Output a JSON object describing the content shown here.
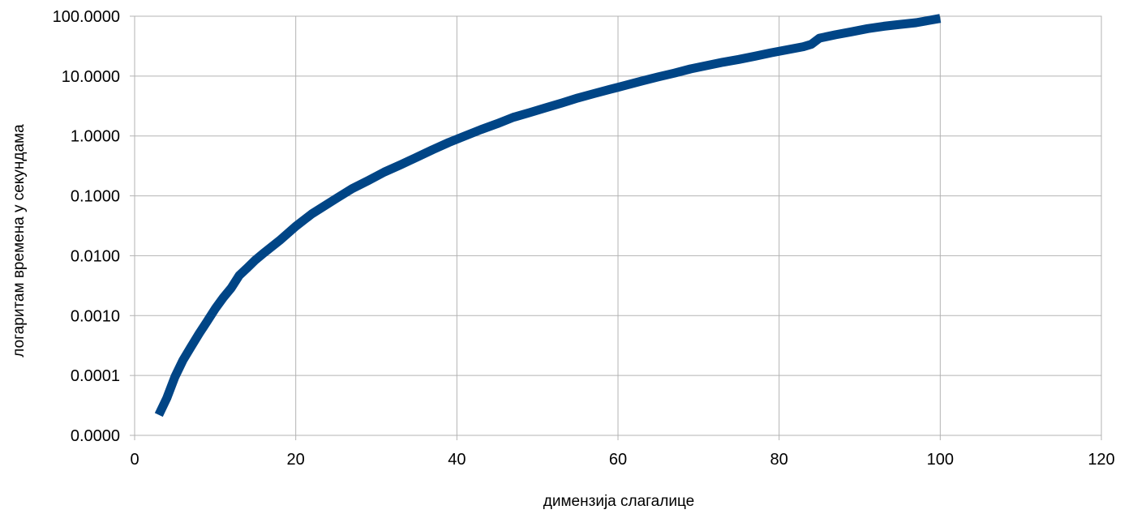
{
  "chart_data": {
    "type": "line",
    "title": "",
    "xlabel": "димензија слагалице",
    "ylabel": "логаритам времена у секундама",
    "y_scale": "log",
    "xlim": [
      0,
      120
    ],
    "ylim": [
      1e-05,
      100
    ],
    "grid": true,
    "x_ticks": [
      0,
      20,
      40,
      60,
      80,
      100,
      120
    ],
    "x_tick_labels": [
      "0",
      "20",
      "40",
      "60",
      "80",
      "100",
      "120"
    ],
    "y_ticks": [
      1e-05,
      0.0001,
      0.001,
      0.01,
      0.1,
      1,
      10,
      100
    ],
    "y_tick_labels": [
      "0.0000",
      "0.0001",
      "0.0010",
      "0.0100",
      "0.1000",
      "1.0000",
      "10.0000",
      "100.0000"
    ],
    "series": [
      {
        "color": "#004586",
        "x": [
          3,
          4,
          5,
          6,
          7,
          8,
          9,
          10,
          11,
          12,
          13,
          14,
          15,
          16,
          18,
          20,
          22,
          25,
          27,
          29,
          31,
          33,
          35,
          37,
          39,
          41,
          43,
          45,
          47,
          49,
          51,
          53,
          55,
          57,
          59,
          61,
          63,
          65,
          67,
          69,
          71,
          73,
          75,
          77,
          79,
          81,
          83,
          84,
          85,
          87,
          89,
          91,
          93,
          95,
          97,
          100
        ],
        "y": [
          2.2e-05,
          4.2e-05,
          9.5e-05,
          0.00018,
          0.0003,
          0.0005,
          0.0008,
          0.0013,
          0.002,
          0.0029,
          0.0047,
          0.0063,
          0.0085,
          0.011,
          0.018,
          0.031,
          0.05,
          0.09,
          0.132,
          0.18,
          0.25,
          0.33,
          0.44,
          0.59,
          0.78,
          1.0,
          1.28,
          1.6,
          2.05,
          2.45,
          2.95,
          3.55,
          4.3,
          5.1,
          6.0,
          7.05,
          8.3,
          9.7,
          11.2,
          13.2,
          15.0,
          17.0,
          19.0,
          21.5,
          24.5,
          27.5,
          31.0,
          34.0,
          43.0,
          49.0,
          55.0,
          62.0,
          68.0,
          73.0,
          78.0,
          92.0
        ]
      }
    ]
  }
}
